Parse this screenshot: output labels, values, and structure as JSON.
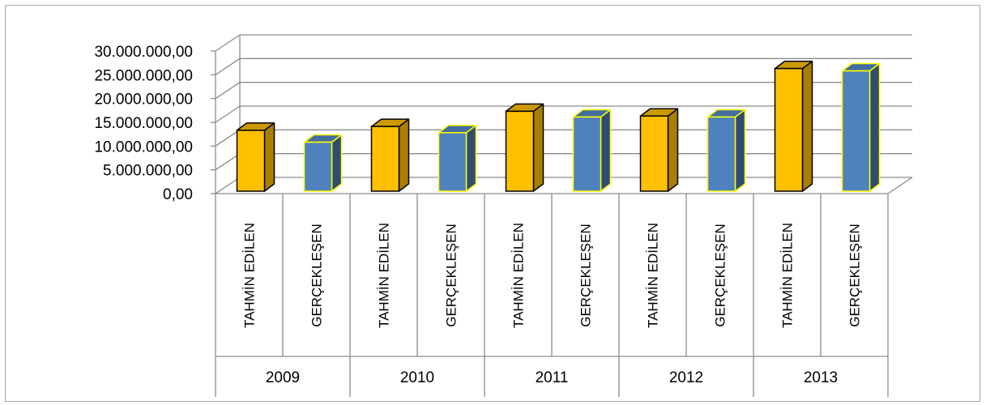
{
  "chart_data": {
    "type": "bar",
    "groups": [
      "2009",
      "2010",
      "2011",
      "2012",
      "2013"
    ],
    "categories": [
      "TAHMİN EDİLEN",
      "GERÇEKLEŞEN",
      "TAHMİN EDİLEN",
      "GERÇEKLEŞEN",
      "TAHMİN EDİLEN",
      "GERÇEKLEŞEN",
      "TAHMİN EDİLEN",
      "GERÇEKLEŞEN",
      "TAHMİN EDİLEN",
      "GERÇEKLEŞEN"
    ],
    "values": [
      14000000,
      11500000,
      14800000,
      13500000,
      18000000,
      16800000,
      17000000,
      16800000,
      27000000,
      26500000
    ],
    "bar_colors": [
      "#ffc000",
      "#4f81bd",
      "#ffc000",
      "#4f81bd",
      "#ffc000",
      "#4f81bd",
      "#ffc000",
      "#4f81bd",
      "#ffc000",
      "#4f81bd"
    ],
    "y_ticks": [
      "0,00",
      "5.000.000,00",
      "10.000.000,00",
      "15.000.000,00",
      "20.000.000,00",
      "25.000.000,00",
      "30.000.000,00"
    ],
    "ylim": [
      0,
      30000000
    ],
    "grid": true,
    "style": "3d-column"
  }
}
